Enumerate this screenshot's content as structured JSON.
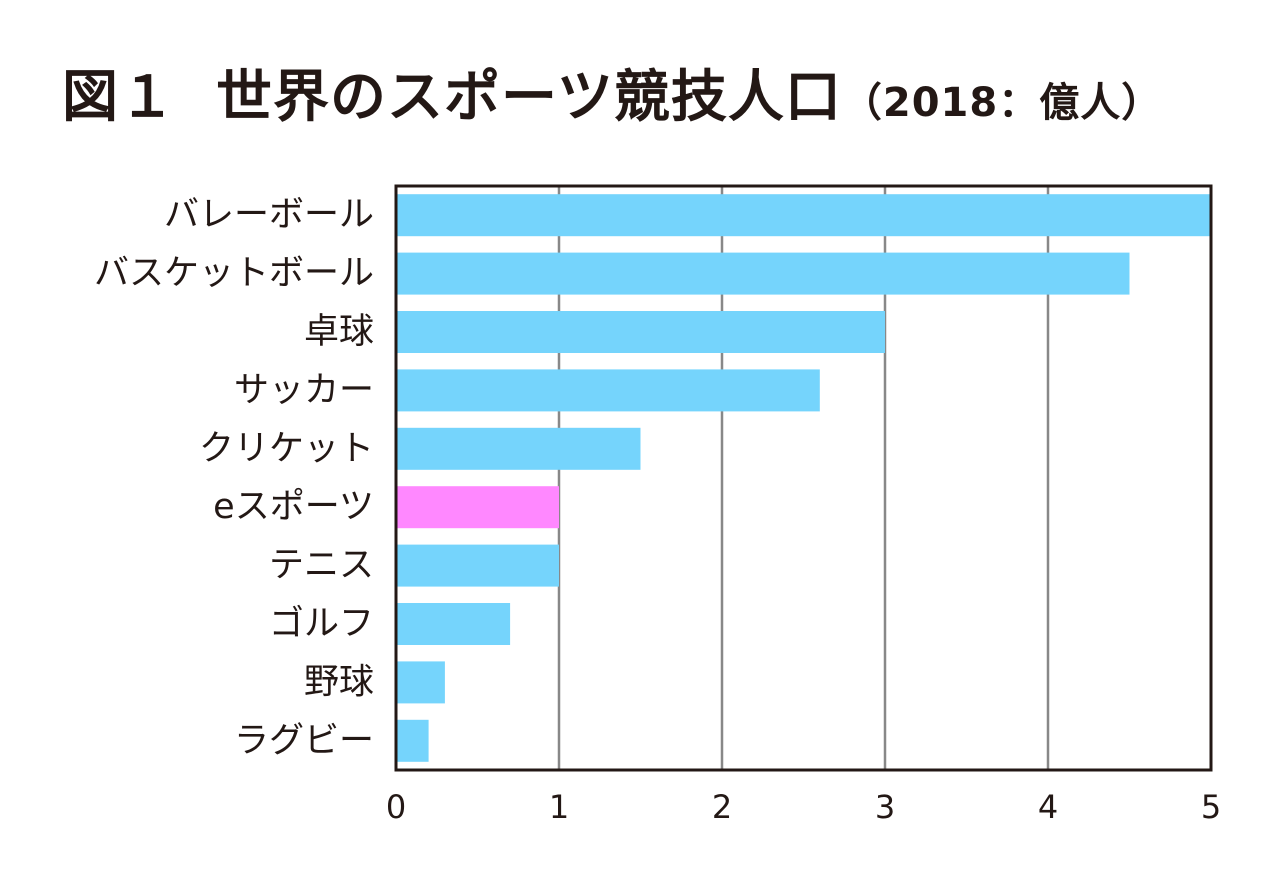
{
  "title": {
    "main": "図１",
    "text": "世界のスポーツ競技人口",
    "sub": "（2018：億人）"
  },
  "colors": {
    "bar": "#75d4fc",
    "highlight": "#ff88ff",
    "grid": "#888888",
    "frame": "#231815"
  },
  "chart_data": {
    "type": "bar",
    "orientation": "horizontal",
    "title": "図１　世界のスポーツ競技人口（2018：億人）",
    "categories": [
      "バレーボール",
      "バスケットボール",
      "卓球",
      "サッカー",
      "クリケット",
      "eスポーツ",
      "テニス",
      "ゴルフ",
      "野球",
      "ラグビー"
    ],
    "values": [
      5,
      4.5,
      3,
      2.6,
      1.5,
      1,
      1,
      0.7,
      0.3,
      0.2
    ],
    "highlight_index": 5,
    "xlim": [
      0,
      5
    ],
    "xticks": [
      "0",
      "1",
      "2",
      "3",
      "4",
      "5"
    ],
    "grid": true,
    "xlabel": "",
    "ylabel": ""
  }
}
